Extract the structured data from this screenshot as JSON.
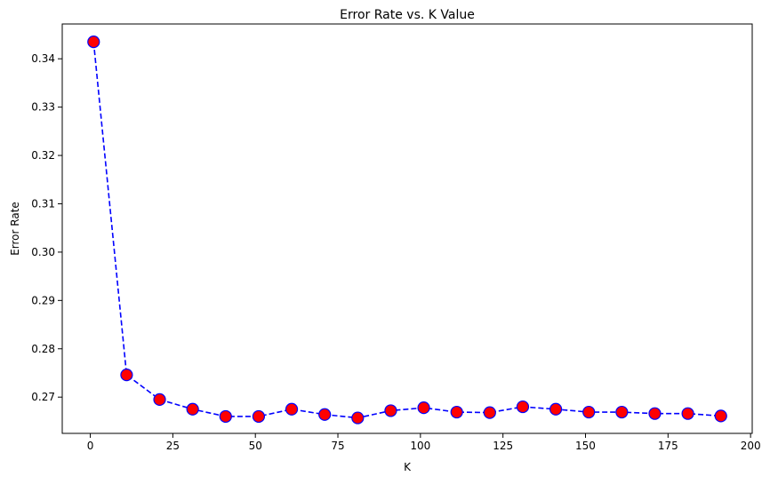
{
  "chart_data": {
    "type": "line",
    "title": "Error Rate vs. K Value",
    "xlabel": "K",
    "ylabel": "Error Rate",
    "xlim": [
      -8.5,
      200.5
    ],
    "ylim": [
      0.2625,
      0.3472
    ],
    "xticks": [
      0,
      25,
      50,
      75,
      100,
      125,
      150,
      175,
      200
    ],
    "yticks": [
      0.27,
      0.28,
      0.29,
      0.3,
      0.31,
      0.32,
      0.33,
      0.34
    ],
    "ytick_labels": [
      "0.27",
      "0.28",
      "0.29",
      "0.30",
      "0.31",
      "0.32",
      "0.33",
      "0.34"
    ],
    "grid": false,
    "line_style": "dashed",
    "line_color": "#0000ff",
    "marker": "circle",
    "marker_face_color": "#ff0000",
    "marker_edge_color": "#0000ff",
    "series": [
      {
        "x": [
          1,
          11,
          21,
          31,
          41,
          51,
          61,
          71,
          81,
          91,
          101,
          111,
          121,
          131,
          141,
          151,
          161,
          171,
          181,
          191
        ],
        "values": [
          0.3435,
          0.2746,
          0.2695,
          0.2675,
          0.266,
          0.266,
          0.2675,
          0.2664,
          0.2657,
          0.2672,
          0.2678,
          0.2669,
          0.2668,
          0.268,
          0.2675,
          0.2669,
          0.2669,
          0.2666,
          0.2666,
          0.2661
        ]
      }
    ]
  }
}
